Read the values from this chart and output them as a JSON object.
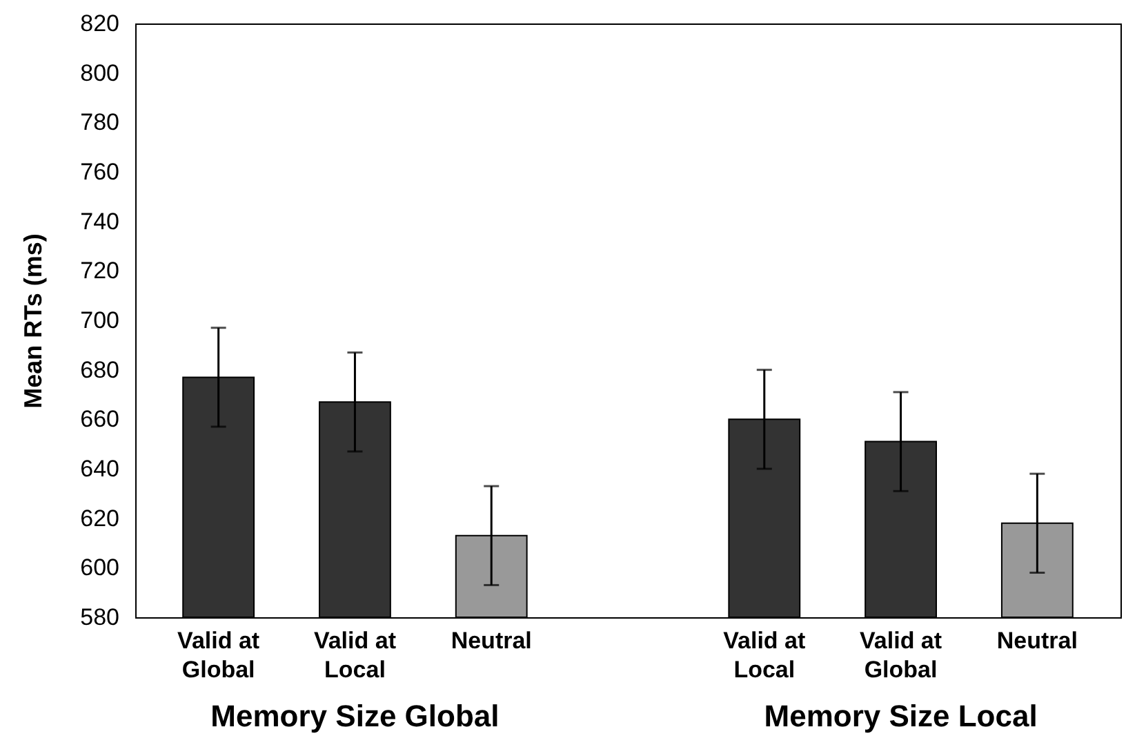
{
  "chart_data": {
    "type": "bar",
    "ylabel": "Mean RTs (ms)",
    "categories": [
      "Valid at Global",
      "Valid at Local",
      "Neutral",
      null,
      "Valid at Local",
      "Valid at Global",
      "Neutral"
    ],
    "values": [
      677,
      667,
      613,
      null,
      660,
      651,
      618
    ],
    "colors": [
      "#333333",
      "#333333",
      "#999999",
      null,
      "#333333",
      "#333333",
      "#999999"
    ],
    "errors": [
      20,
      20,
      20,
      null,
      20,
      20,
      20
    ],
    "ylim": [
      580,
      820
    ],
    "yticks": [
      580,
      600,
      620,
      640,
      660,
      680,
      700,
      720,
      740,
      760,
      780,
      800,
      820
    ],
    "grid": false,
    "annotations": [
      "Memory Size Global",
      "Memory Size Local"
    ]
  }
}
